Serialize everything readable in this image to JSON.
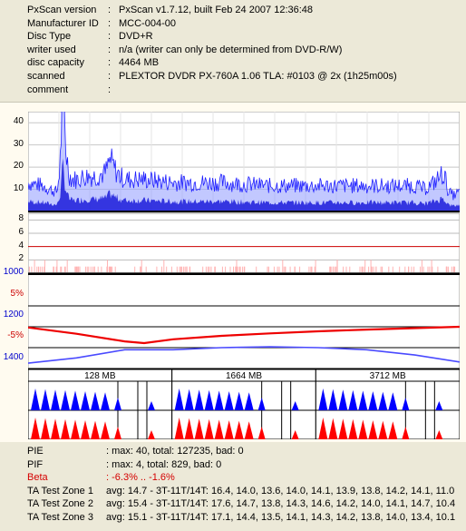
{
  "info": [
    {
      "key": "PxScan version",
      "value": "PxScan v1.7.12, built Feb 24 2007 12:36:48"
    },
    {
      "key": "Manufacturer ID",
      "value": "MCC-004-00"
    },
    {
      "key": "Disc Type",
      "value": "DVD+R"
    },
    {
      "key": "writer used",
      "value": "n/a (writer can only be determined from DVD-R/W)"
    },
    {
      "key": "disc capacity",
      "value": "4464 MB"
    },
    {
      "key": "scanned",
      "value": "PLEXTOR DVDR PX-760A 1.06 TLA: #0103 @ 2x (1h25m00s)"
    },
    {
      "key": "comment",
      "value": ""
    }
  ],
  "colon": ":",
  "chart_data": [
    {
      "type": "area",
      "name_hint": "PIE graph",
      "yticks": [
        "40",
        "30",
        "20",
        "10"
      ],
      "ylim": [
        0,
        45
      ],
      "x_range_mb": [
        0,
        4464
      ],
      "series": [
        {
          "name": "PIE",
          "color": "#0000ff",
          "x": [
            0,
            150,
            300,
            330,
            360,
            390,
            420,
            450,
            500,
            600,
            700,
            800,
            850,
            900,
            950,
            1000,
            1200,
            1500,
            2000,
            2500,
            3000,
            3500,
            4000,
            4100,
            4200,
            4300,
            4350,
            4400,
            4464
          ],
          "values": [
            9,
            8,
            6,
            14,
            40,
            20,
            12,
            10,
            10,
            11,
            11,
            12,
            16,
            13,
            11,
            10,
            10,
            9,
            9,
            8,
            8,
            8,
            8,
            7,
            9,
            12,
            6,
            5,
            6
          ]
        }
      ]
    },
    {
      "type": "bar",
      "name_hint": "PIF graph",
      "yticks": [
        "8",
        "6",
        "4",
        "2"
      ],
      "ylim": [
        0,
        9
      ],
      "threshold": 4,
      "series": [
        {
          "name": "PIF",
          "color": "#ff9999",
          "max": 4
        }
      ]
    },
    {
      "type": "line",
      "name_hint": "Beta / Jitter graph",
      "left_ticks": [
        {
          "label": "1000",
          "color": "#0000cc"
        },
        {
          "label": "5%",
          "color": "#cc0000"
        },
        {
          "label": "1200",
          "color": "#0000cc"
        },
        {
          "label": "-5%",
          "color": "#cc0000"
        },
        {
          "label": "1400",
          "color": "#0000cc"
        }
      ],
      "series": [
        {
          "name": "Beta",
          "color": "#ee0000",
          "x": [
            0,
            500,
            1000,
            1200,
            1500,
            2000,
            2500,
            3000,
            3500,
            4000,
            4464
          ],
          "values": [
            -1.8,
            -3.6,
            -5.8,
            -6.3,
            -5.2,
            -4.2,
            -3.5,
            -2.9,
            -2.4,
            -2.0,
            -1.6
          ]
        },
        {
          "name": "Jitter",
          "color": "#4a4aff",
          "x": [
            0,
            500,
            1000,
            1500,
            2000,
            2500,
            3000,
            3500,
            4000,
            4464
          ],
          "values": [
            1378,
            1365,
            1345,
            1345,
            1340,
            1338,
            1340,
            1345,
            1358,
            1375
          ]
        }
      ]
    },
    {
      "type": "bar",
      "name_hint": "TA Test Zones",
      "zones": [
        "128 MB",
        "1664 MB",
        "3712 MB"
      ],
      "series": [
        {
          "name": "lands",
          "color": "#0000ff"
        },
        {
          "name": "pits",
          "color": "#ff0000"
        }
      ]
    }
  ],
  "summary": [
    {
      "key": "PIE",
      "value": ": max: 40, total: 127235, bad: 0",
      "red": false
    },
    {
      "key": "PIF",
      "value": ": max: 4, total: 829, bad: 0",
      "red": false
    },
    {
      "key": "Beta",
      "value": ": -6.3% .. -1.6%",
      "red": true
    },
    {
      "key": "TA Test Zone 1",
      "value": "avg: 14.7 - 3T-11T/14T: 16.4, 14.0, 13.6, 14.0, 14.1, 13.9, 13.8, 14.2, 14.1, 11.0",
      "red": false
    },
    {
      "key": "TA Test Zone 2",
      "value": "avg: 15.4 - 3T-11T/14T: 17.6, 14.7, 13.8, 14.3, 14.6, 14.2, 14.0, 14.1, 14.7, 10.4",
      "red": false
    },
    {
      "key": "TA Test Zone 3",
      "value": "avg: 15.1 - 3T-11T/14T: 17.1, 14.4, 13.5, 14.1, 14.3, 14.2, 13.8, 14.0, 13.4, 10.1",
      "red": false
    }
  ]
}
